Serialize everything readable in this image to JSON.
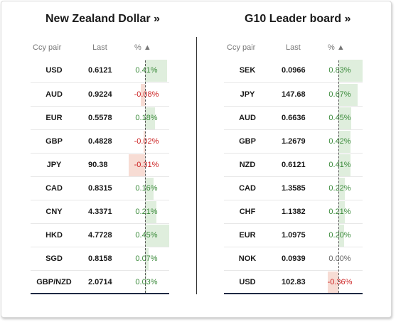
{
  "left": {
    "title": "New Zealand Dollar »",
    "headers": {
      "pair": "Ccy pair",
      "last": "Last",
      "pct": "% ▲"
    },
    "rows": [
      {
        "pair": "USD",
        "last": "0.6121",
        "pct": "0.41%",
        "value": 0.41
      },
      {
        "pair": "AUD",
        "last": "0.9224",
        "pct": "-0.08%",
        "value": -0.08
      },
      {
        "pair": "EUR",
        "last": "0.5578",
        "pct": "0.18%",
        "value": 0.18
      },
      {
        "pair": "GBP",
        "last": "0.4828",
        "pct": "-0.02%",
        "value": -0.02
      },
      {
        "pair": "JPY",
        "last": "90.38",
        "pct": "-0.31%",
        "value": -0.31
      },
      {
        "pair": "CAD",
        "last": "0.8315",
        "pct": "0.16%",
        "value": 0.16
      },
      {
        "pair": "CNY",
        "last": "4.3371",
        "pct": "0.21%",
        "value": 0.21
      },
      {
        "pair": "HKD",
        "last": "4.7728",
        "pct": "0.45%",
        "value": 0.45
      },
      {
        "pair": "SGD",
        "last": "0.8158",
        "pct": "0.07%",
        "value": 0.07
      },
      {
        "pair": "GBP/NZD",
        "last": "2.0714",
        "pct": "0.03%",
        "value": 0.03
      }
    ]
  },
  "right": {
    "title": "G10 Leader board »",
    "headers": {
      "pair": "Ccy pair",
      "last": "Last",
      "pct": "% ▲"
    },
    "rows": [
      {
        "pair": "SEK",
        "last": "0.0966",
        "pct": "0.83%",
        "value": 0.83
      },
      {
        "pair": "JPY",
        "last": "147.68",
        "pct": "0.67%",
        "value": 0.67
      },
      {
        "pair": "AUD",
        "last": "0.6636",
        "pct": "0.45%",
        "value": 0.45
      },
      {
        "pair": "GBP",
        "last": "1.2679",
        "pct": "0.42%",
        "value": 0.42
      },
      {
        "pair": "NZD",
        "last": "0.6121",
        "pct": "0.41%",
        "value": 0.41
      },
      {
        "pair": "CAD",
        "last": "1.3585",
        "pct": "0.22%",
        "value": 0.22
      },
      {
        "pair": "CHF",
        "last": "1.1382",
        "pct": "0.21%",
        "value": 0.21
      },
      {
        "pair": "EUR",
        "last": "1.0975",
        "pct": "0.20%",
        "value": 0.2
      },
      {
        "pair": "NOK",
        "last": "0.0939",
        "pct": "0.00%",
        "value": 0
      },
      {
        "pair": "USD",
        "last": "102.83",
        "pct": "-0.36%",
        "value": -0.36
      }
    ]
  },
  "colors": {
    "positive_bar": "#dfeedd",
    "negative_bar": "#f7dcd4",
    "positive_text": "#3a8a3a",
    "negative_text": "#cc2222",
    "rule": "#1f2a44"
  }
}
